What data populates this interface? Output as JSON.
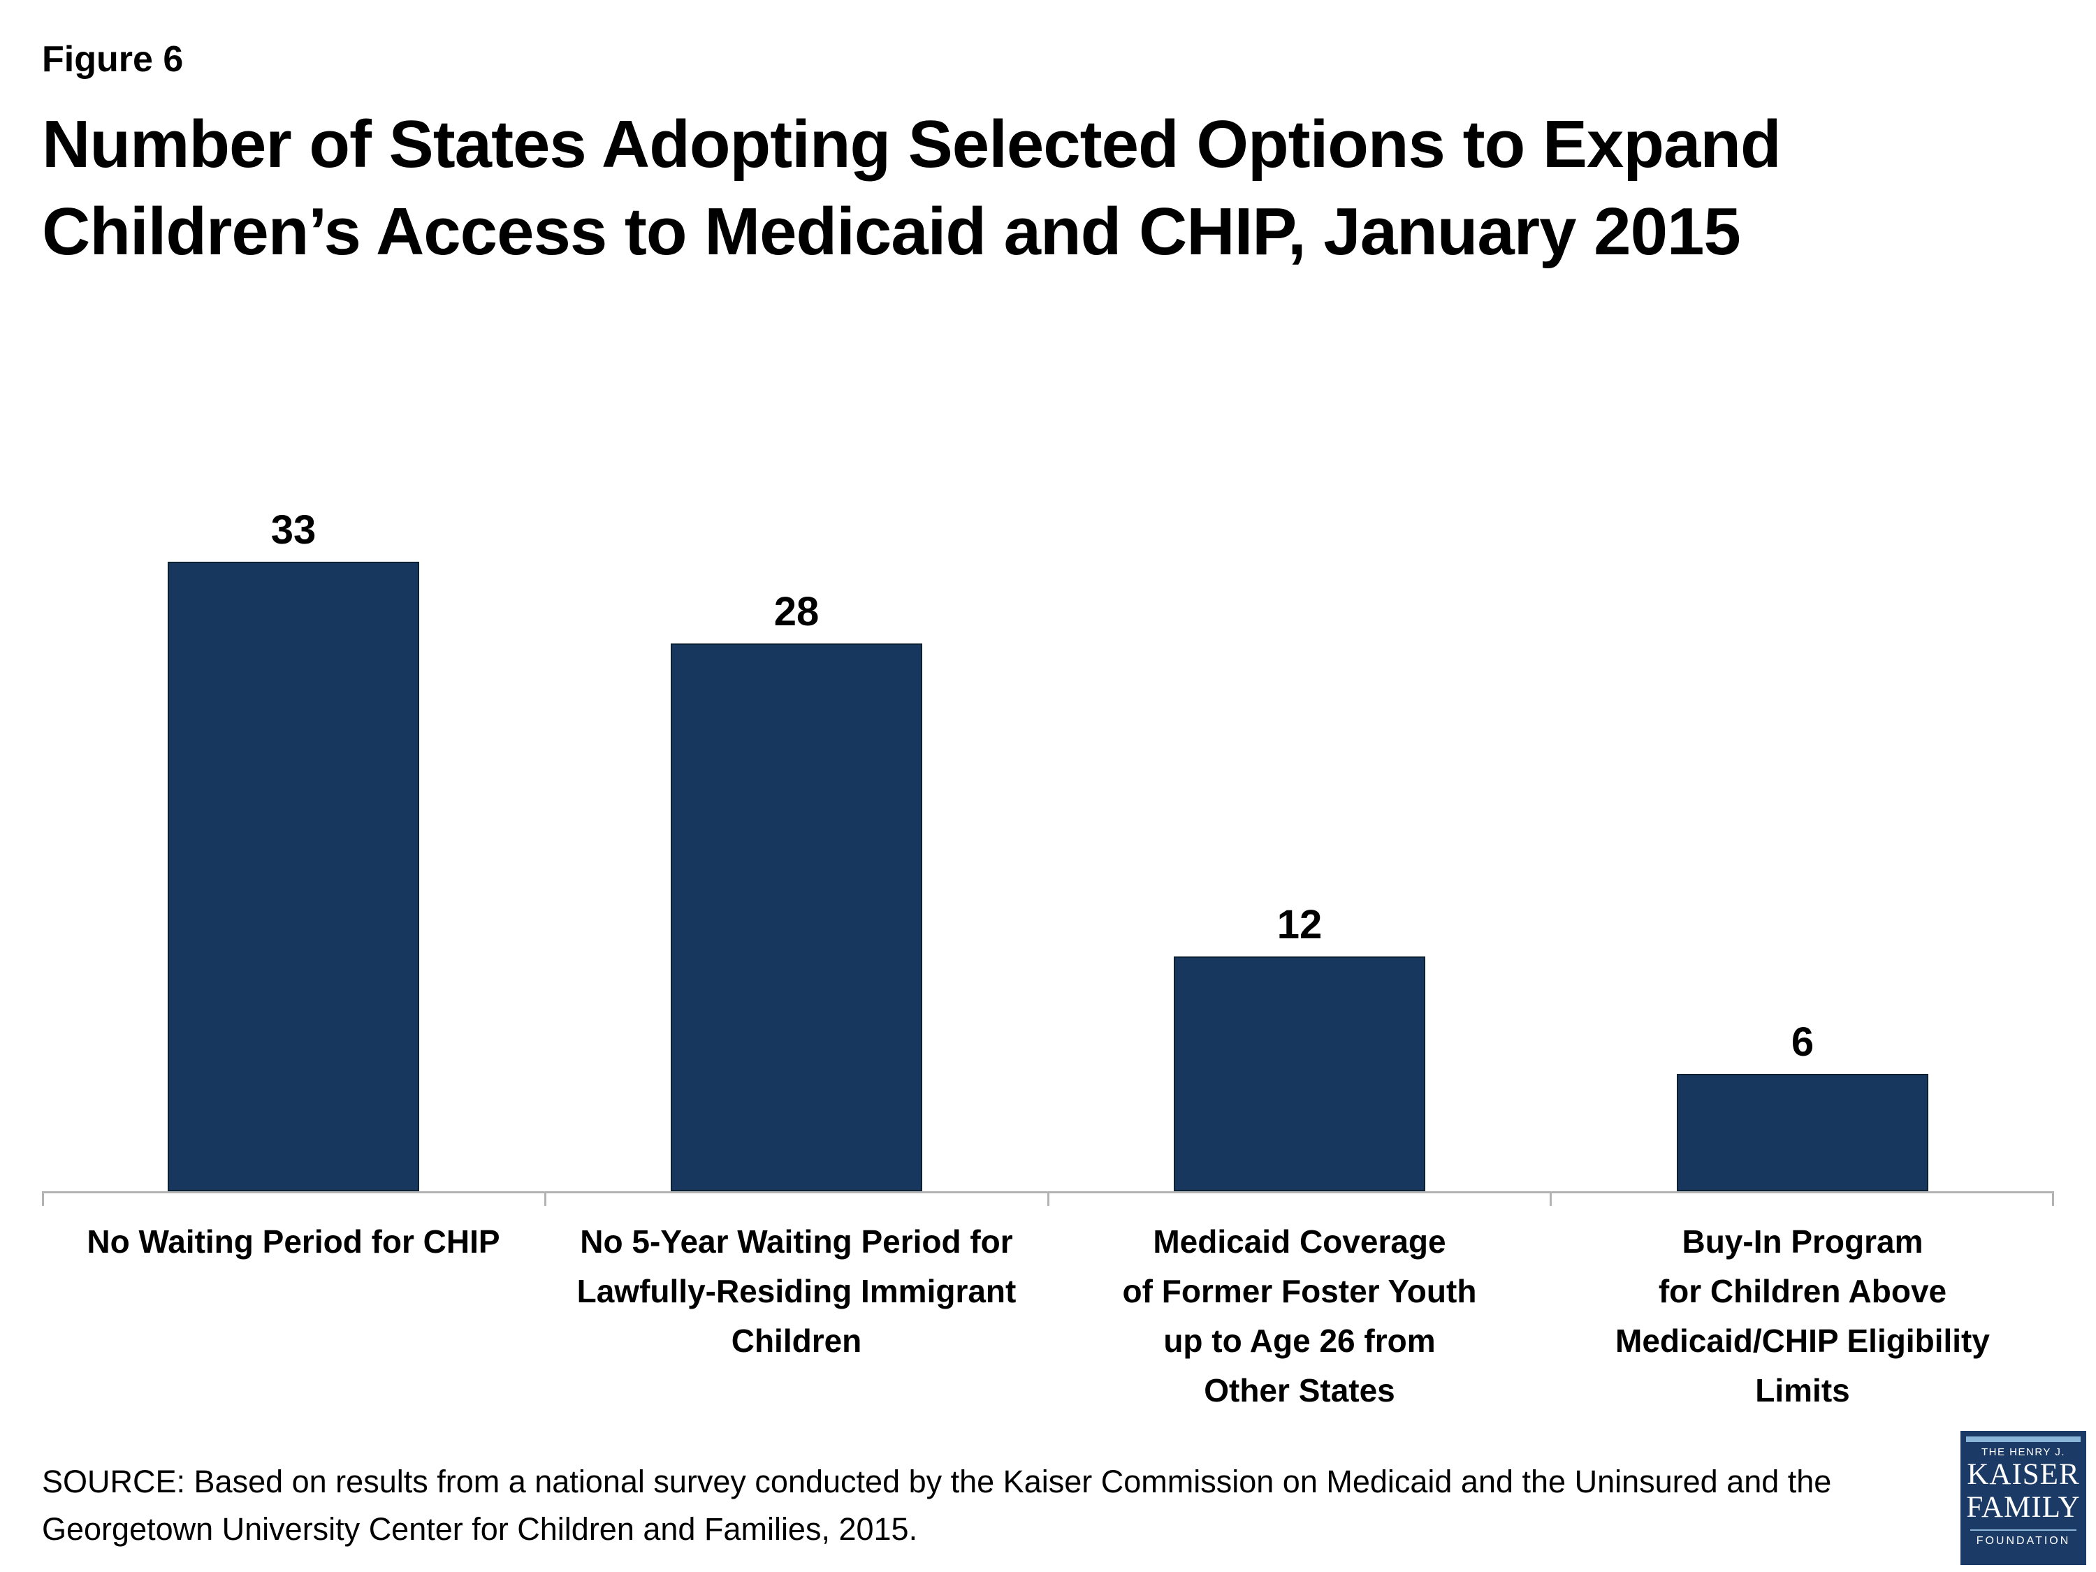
{
  "figure_label": "Figure 6",
  "title": "Number of States Adopting Selected Options to Expand\nChildren’s Access to Medicaid and CHIP, January 2015",
  "chart_data": {
    "type": "bar",
    "title": "Number of States Adopting Selected Options to Expand Children’s Access to Medicaid and CHIP, January 2015",
    "categories": [
      "No Waiting Period for CHIP",
      "No 5-Year Waiting Period for\nLawfully-Residing Immigrant\nChildren",
      "Medicaid Coverage\nof Former Foster Youth\nup to Age 26 from\nOther States",
      "Buy-In Program\nfor Children Above\nMedicaid/CHIP Eligibility\nLimits"
    ],
    "values": [
      33,
      28,
      12,
      6
    ],
    "xlabel": "",
    "ylabel": "",
    "ylim": [
      0,
      35
    ],
    "grid": false,
    "value_labels_shown": true,
    "bar_color": "#17375E",
    "axis_color": "#b3b3b3"
  },
  "source": "SOURCE: Based on results from a national survey conducted by the Kaiser Commission on Medicaid and the Uninsured and the\nGeorgetown University Center for Children and Families, 2015.",
  "logo": {
    "line1": "THE HENRY J.",
    "line2": "KAISER",
    "line3": "FAMILY",
    "line4": "FOUNDATION",
    "bg_color": "#1b3a66",
    "accent_color": "#8ab4d8"
  }
}
